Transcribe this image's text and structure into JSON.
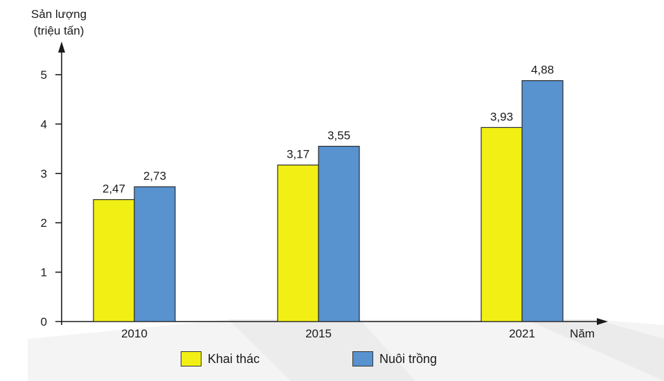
{
  "chart_data": {
    "type": "bar",
    "categories": [
      "2010",
      "2015",
      "2021"
    ],
    "series": [
      {
        "name": "Khai thác",
        "values": [
          2.47,
          3.17,
          3.93
        ],
        "labels": [
          "2,47",
          "3,17",
          "3,93"
        ],
        "color": "#f2ef14"
      },
      {
        "name": "Nuôi trồng",
        "values": [
          2.73,
          3.55,
          4.88
        ],
        "labels": [
          "2,73",
          "3,55",
          "4,88"
        ],
        "color": "#5892cf"
      }
    ],
    "ylabel": [
      "Sản lượng",
      "(triệu tấn)"
    ],
    "xlabel": "Năm",
    "ylim": [
      0,
      5
    ],
    "yticks": [
      0,
      1,
      2,
      3,
      4,
      5
    ],
    "ytick_labels": [
      "0",
      "1",
      "2",
      "3",
      "4",
      "5"
    ],
    "grid": false,
    "legend_position": "bottom"
  }
}
